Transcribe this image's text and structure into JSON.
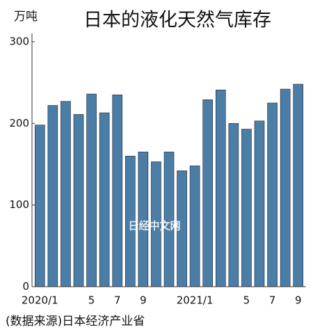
{
  "chart_data": {
    "type": "bar",
    "title": "日本的液化天然气库存",
    "unit": "万吨",
    "source": "(数据来源)日本经济产业省",
    "watermark": "日经中文网",
    "categories": [
      "2020/1",
      null,
      null,
      null,
      "5",
      null,
      "7",
      null,
      "9",
      null,
      null,
      null,
      "2021/1",
      null,
      null,
      null,
      "5",
      null,
      "7",
      null,
      "9"
    ],
    "values": [
      198,
      222,
      227,
      211,
      236,
      213,
      235,
      160,
      165,
      153,
      165,
      142,
      148,
      229,
      241,
      200,
      193,
      203,
      225,
      242,
      248
    ],
    "color": "#4a7ea6",
    "ylim": [
      0,
      300
    ],
    "yticks": [
      0,
      100,
      200,
      300
    ]
  }
}
